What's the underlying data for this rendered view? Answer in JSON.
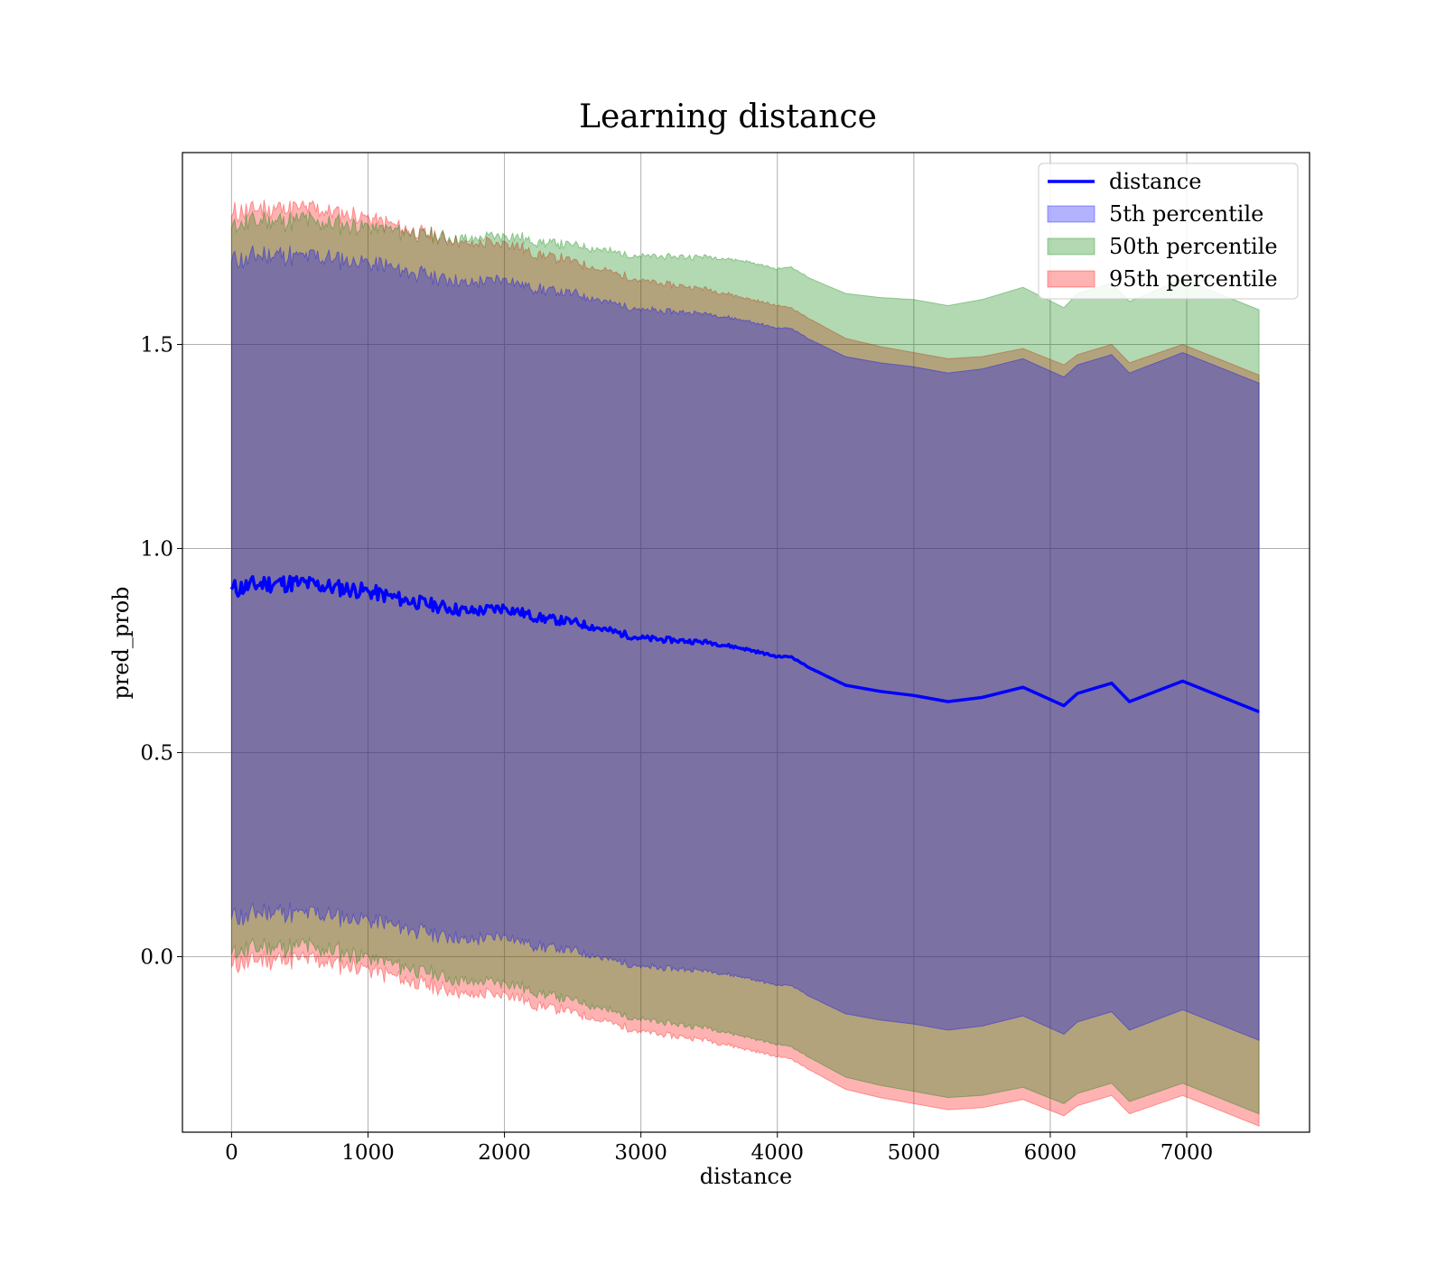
{
  "chart_data": {
    "type": "area",
    "title": "Learning distance",
    "xlabel": "distance",
    "ylabel": "pred_prob",
    "xlim": [
      -360,
      7900
    ],
    "ylim": [
      -0.43,
      1.97
    ],
    "xticks": [
      0,
      1000,
      2000,
      3000,
      4000,
      5000,
      6000,
      7000
    ],
    "xtick_labels": [
      "0",
      "1000",
      "2000",
      "3000",
      "4000",
      "5000",
      "6000",
      "7000"
    ],
    "yticks": [
      0.0,
      0.5,
      1.0,
      1.5
    ],
    "ytick_labels": [
      "0.0",
      "0.5",
      "1.0",
      "1.5"
    ],
    "grid": true,
    "legend_position": "top-right",
    "legend": [
      {
        "label": "distance",
        "kind": "line",
        "color": "#0000ff"
      },
      {
        "label": "5th percentile",
        "kind": "band",
        "color": "#0000ff"
      },
      {
        "label": "50th percentile",
        "kind": "band",
        "color": "#008000"
      },
      {
        "label": "95th percentile",
        "kind": "band",
        "color": "#ff0000"
      }
    ],
    "x": [
      0,
      250,
      500,
      750,
      1000,
      1250,
      1500,
      1750,
      2000,
      2250,
      2500,
      2750,
      3000,
      3250,
      3500,
      3750,
      4000,
      4100,
      4250,
      4500,
      4750,
      5000,
      5250,
      5500,
      5800,
      6100,
      6200,
      6450,
      6580,
      6970,
      7530
    ],
    "series": [
      {
        "name": "distance",
        "values": [
          0.9,
          0.915,
          0.915,
          0.905,
          0.895,
          0.875,
          0.86,
          0.845,
          0.855,
          0.83,
          0.82,
          0.8,
          0.78,
          0.775,
          0.77,
          0.755,
          0.735,
          0.735,
          0.705,
          0.665,
          0.65,
          0.64,
          0.625,
          0.635,
          0.66,
          0.615,
          0.645,
          0.67,
          0.625,
          0.675,
          0.6
        ]
      },
      {
        "name": "5th percentile",
        "lower": [
          0.095,
          0.11,
          0.11,
          0.1,
          0.09,
          0.07,
          0.055,
          0.04,
          0.05,
          0.025,
          0.015,
          -0.005,
          -0.025,
          -0.03,
          -0.035,
          -0.05,
          -0.07,
          -0.07,
          -0.1,
          -0.14,
          -0.155,
          -0.165,
          -0.18,
          -0.17,
          -0.145,
          -0.19,
          -0.16,
          -0.135,
          -0.18,
          -0.13,
          -0.205
        ],
        "upper": [
          1.705,
          1.72,
          1.72,
          1.71,
          1.7,
          1.68,
          1.665,
          1.65,
          1.66,
          1.635,
          1.625,
          1.605,
          1.585,
          1.58,
          1.575,
          1.56,
          1.54,
          1.54,
          1.51,
          1.47,
          1.455,
          1.445,
          1.43,
          1.44,
          1.465,
          1.42,
          1.45,
          1.475,
          1.43,
          1.48,
          1.405
        ]
      },
      {
        "name": "50th percentile",
        "lower": [
          0.01,
          0.025,
          0.025,
          0.015,
          0.0,
          -0.025,
          -0.045,
          -0.065,
          -0.06,
          -0.09,
          -0.105,
          -0.13,
          -0.155,
          -0.165,
          -0.175,
          -0.195,
          -0.215,
          -0.22,
          -0.25,
          -0.295,
          -0.315,
          -0.33,
          -0.345,
          -0.34,
          -0.32,
          -0.36,
          -0.335,
          -0.31,
          -0.355,
          -0.31,
          -0.385
        ]
      },
      {
        "name": "95th percentile",
        "lower": [
          -0.02,
          -0.005,
          -0.005,
          -0.015,
          -0.03,
          -0.055,
          -0.075,
          -0.095,
          -0.09,
          -0.12,
          -0.135,
          -0.16,
          -0.185,
          -0.195,
          -0.205,
          -0.225,
          -0.245,
          -0.25,
          -0.28,
          -0.325,
          -0.345,
          -0.36,
          -0.375,
          -0.37,
          -0.35,
          -0.39,
          -0.365,
          -0.34,
          -0.385,
          -0.34,
          -0.415
        ],
        "upper": [
          1.82,
          1.835,
          1.835,
          1.825,
          1.81,
          1.785,
          1.765,
          1.745,
          1.75,
          1.72,
          1.705,
          1.68,
          1.655,
          1.645,
          1.635,
          1.615,
          1.595,
          1.59,
          1.56,
          1.515,
          1.495,
          1.48,
          1.465,
          1.47,
          1.49,
          1.45,
          1.475,
          1.5,
          1.455,
          1.5,
          1.425
        ]
      }
    ]
  }
}
